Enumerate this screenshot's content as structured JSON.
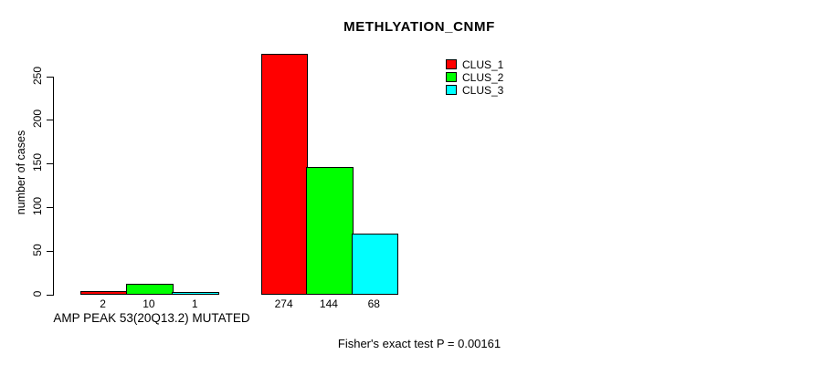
{
  "chart_data": {
    "type": "bar",
    "title": "METHLYATION_CNMF",
    "ylabel": "number of cases",
    "xlabel": "AMP PEAK 53(20Q13.2) MUTATED",
    "annotation": "Fisher's exact test P = 0.00161",
    "yticks": [
      0,
      50,
      100,
      150,
      200,
      250
    ],
    "ylim": [
      0,
      280
    ],
    "grid": false,
    "legend_position": "top-right",
    "background_color": "#ffffff",
    "series": [
      {
        "name": "CLUS_1",
        "color": "#ff0000",
        "values": [
          2,
          274
        ]
      },
      {
        "name": "CLUS_2",
        "color": "#00ff00",
        "values": [
          10,
          144
        ]
      },
      {
        "name": "CLUS_3",
        "color": "#00ffff",
        "values": [
          1,
          68
        ]
      }
    ],
    "bar_labels": [
      [
        "2",
        "10",
        "1"
      ],
      [
        "274",
        "144",
        "68"
      ]
    ]
  }
}
